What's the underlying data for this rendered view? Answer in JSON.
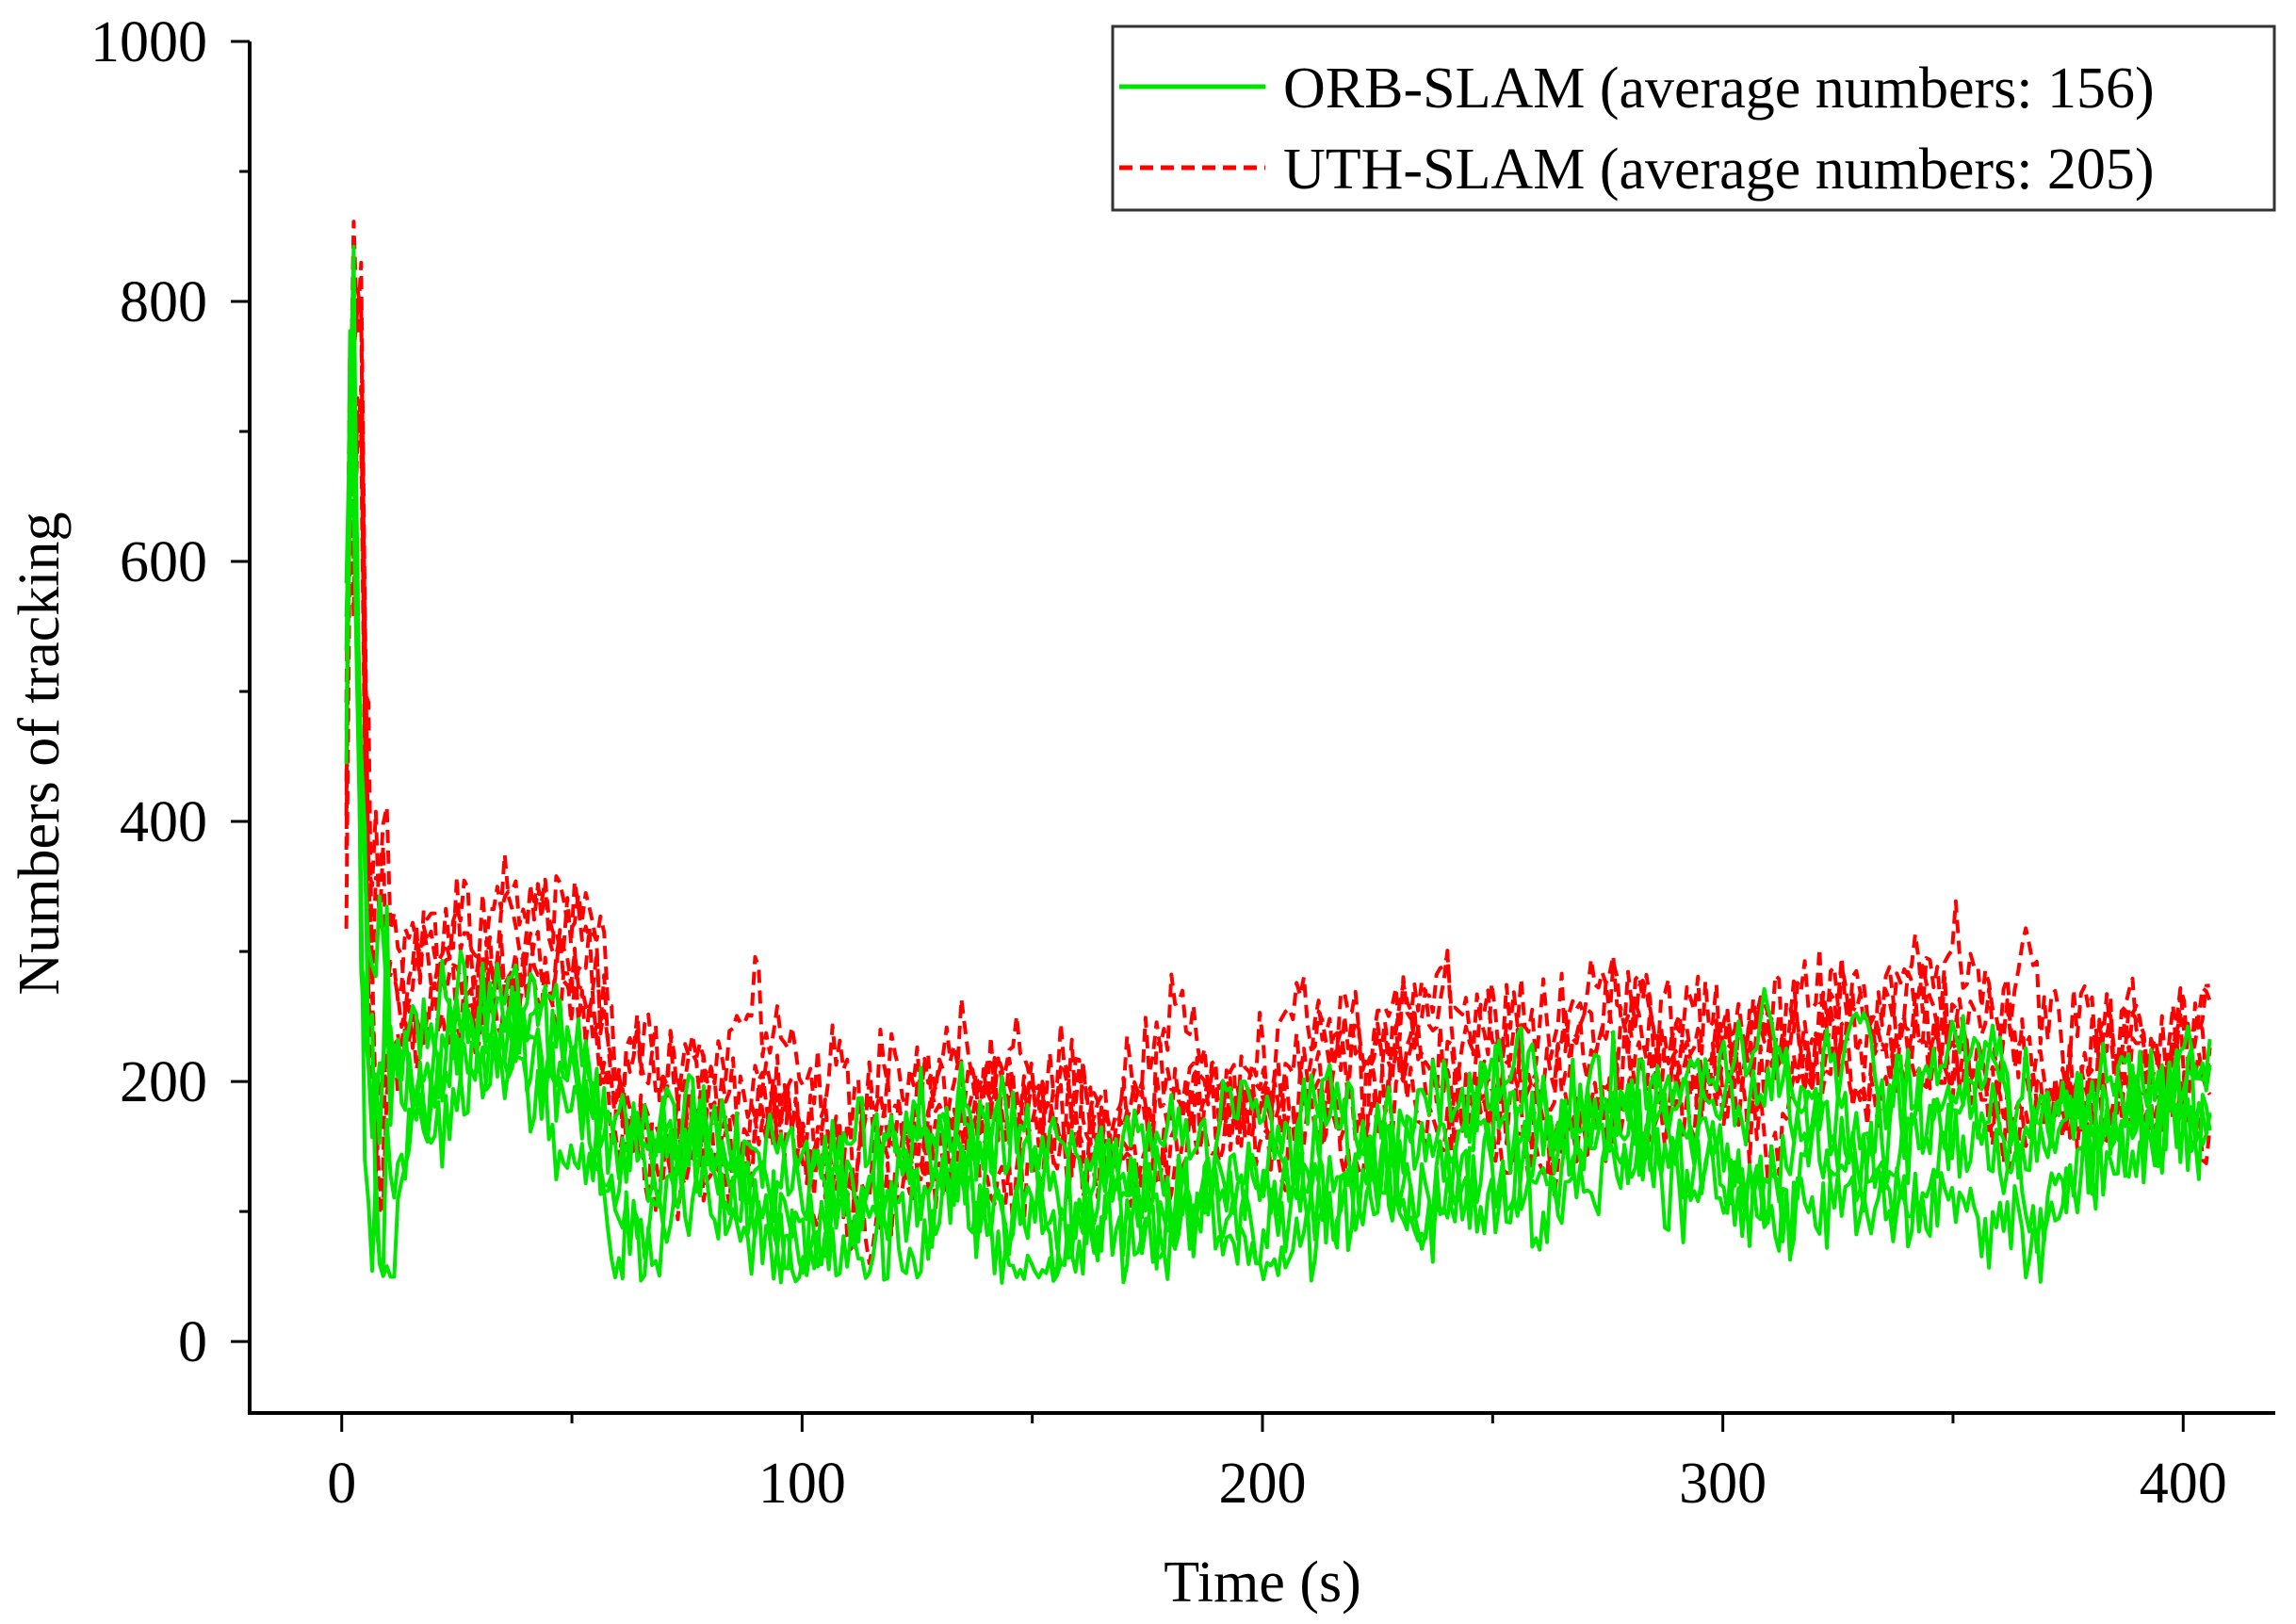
{
  "chart_data": {
    "type": "line",
    "xlabel": "Time (s)",
    "ylabel": "Numbers of tracking",
    "xlim": [
      -20,
      420
    ],
    "ylim": [
      -55,
      1000
    ],
    "xticks": [
      0,
      100,
      200,
      300,
      400
    ],
    "xtick_labels": [
      "0",
      "100",
      "200",
      "300",
      "400"
    ],
    "yticks": [
      0,
      200,
      400,
      600,
      800,
      1000
    ],
    "ytick_labels": [
      "0",
      "200",
      "400",
      "600",
      "800",
      "1000"
    ],
    "legend_position": "top-right",
    "series": [
      {
        "name": "ORB-SLAM (average numbers: 156)",
        "color": "#00e600",
        "dash": "solid",
        "x": [
          1,
          2,
          3,
          4,
          5,
          6,
          8,
          12,
          20,
          30,
          40,
          50,
          55,
          60,
          70,
          80,
          90,
          100,
          110,
          120,
          130,
          140,
          150,
          160,
          170,
          180,
          190,
          200,
          210,
          220,
          230,
          240,
          250,
          260,
          270,
          280,
          290,
          300,
          310,
          320,
          330,
          340,
          350,
          360,
          370,
          380,
          390,
          400,
          406
        ],
        "y": [
          500,
          730,
          620,
          450,
          260,
          190,
          180,
          200,
          220,
          230,
          230,
          210,
          170,
          130,
          130,
          125,
          110,
          110,
          100,
          115,
          120,
          120,
          115,
          110,
          110,
          105,
          115,
          125,
          130,
          140,
          140,
          150,
          145,
          150,
          160,
          165,
          150,
          155,
          160,
          170,
          165,
          160,
          165,
          155,
          150,
          160,
          165,
          170,
          165
        ]
      },
      {
        "name": "UTH-SLAM (average numbers: 205)",
        "color": "#ff0000",
        "dash": "dashed",
        "x": [
          1,
          2,
          3,
          4,
          5,
          6,
          8,
          12,
          20,
          30,
          40,
          50,
          55,
          60,
          70,
          80,
          90,
          100,
          110,
          120,
          130,
          140,
          150,
          160,
          170,
          180,
          190,
          200,
          210,
          220,
          230,
          240,
          250,
          260,
          270,
          280,
          290,
          300,
          310,
          320,
          330,
          340,
          350,
          360,
          370,
          380,
          390,
          400,
          406
        ],
        "y": [
          480,
          840,
          720,
          800,
          550,
          300,
          250,
          270,
          290,
          300,
          310,
          310,
          290,
          170,
          160,
          170,
          175,
          160,
          130,
          165,
          170,
          180,
          175,
          160,
          165,
          170,
          185,
          185,
          190,
          200,
          210,
          215,
          195,
          185,
          210,
          220,
          215,
          220,
          230,
          225,
          220,
          240,
          235,
          220,
          200,
          195,
          210,
          220,
          225
        ]
      }
    ]
  }
}
